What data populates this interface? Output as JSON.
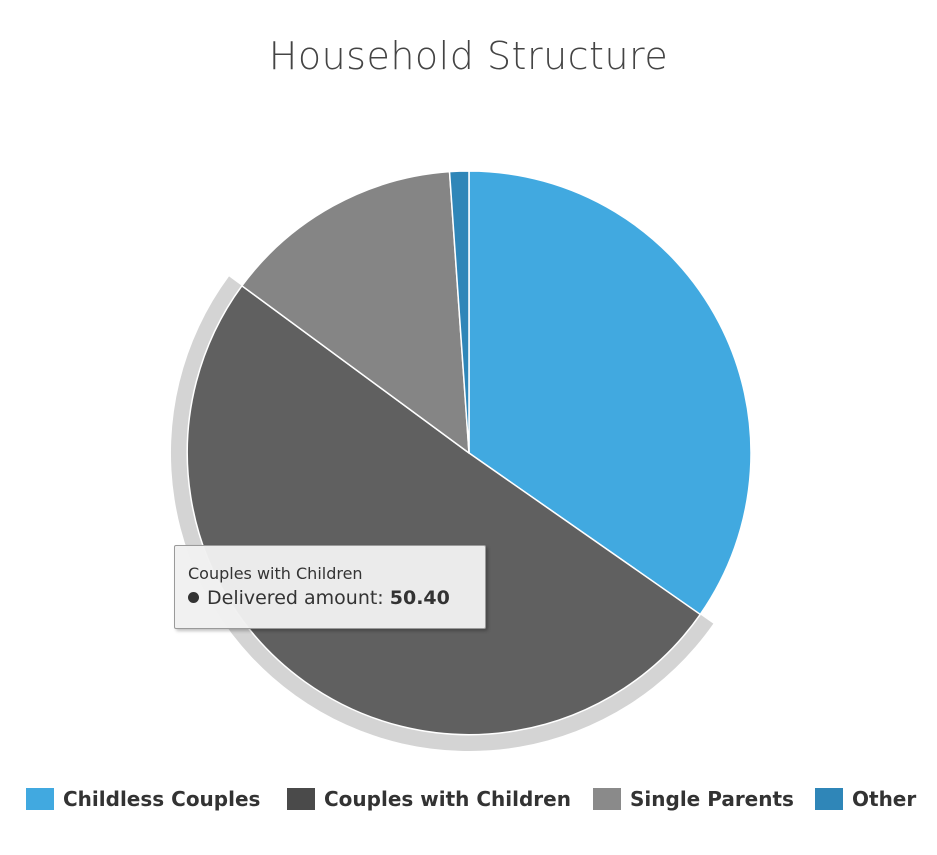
{
  "chart_data": {
    "type": "pie",
    "title": "Household Structure",
    "slices": [
      {
        "name": "Childless Couples",
        "value": 34.7,
        "color": "#41a9e0"
      },
      {
        "name": "Couples with Children",
        "value": 50.4,
        "color": "#606060"
      },
      {
        "name": "Single Parents",
        "value": 13.8,
        "color": "#858585"
      },
      {
        "name": "Other",
        "value": 1.1,
        "color": "#2f86b8"
      }
    ],
    "highlighted": "Couples with Children",
    "legend_position": "bottom",
    "legend": [
      {
        "label": "Childless Couples",
        "color": "#41a9e0"
      },
      {
        "label": "Couples with Children",
        "color": "#4a4a4a"
      },
      {
        "label": "Single Parents",
        "color": "#8a8a8a"
      },
      {
        "label": "Other",
        "color": "#2f86b8"
      }
    ],
    "tooltip": {
      "title": "Couples with Children",
      "series_label": "Delivered amount:",
      "value": "50.40"
    }
  }
}
